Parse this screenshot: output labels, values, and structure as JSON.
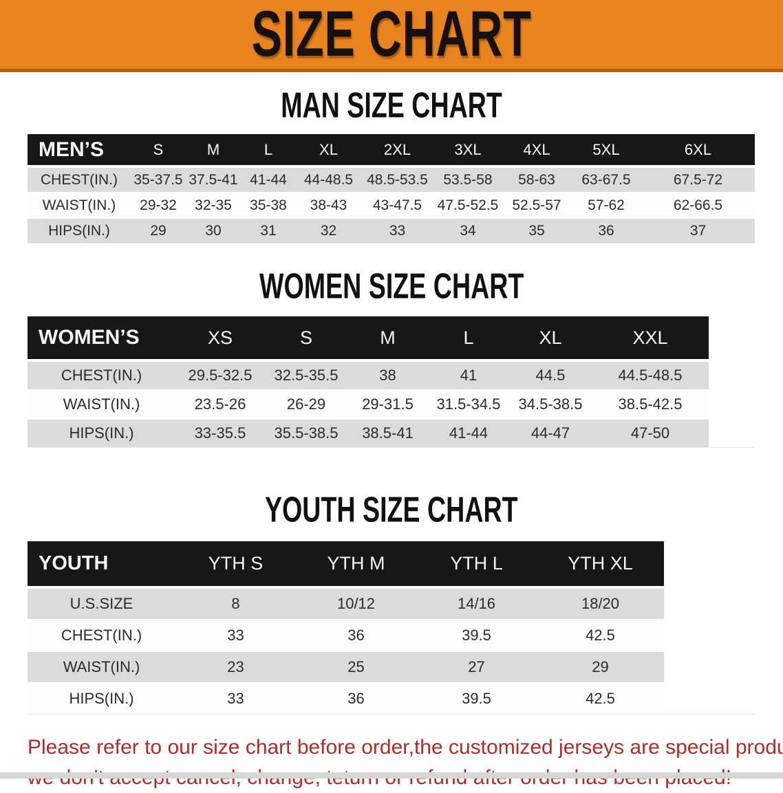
{
  "banner": {
    "title": "SIZE CHART",
    "bg_color": "#E8831E",
    "text_color": "#171010"
  },
  "men": {
    "heading": "MAN SIZE CHART",
    "header": [
      "MEN’S",
      "S",
      "M",
      "L",
      "XL",
      "2XL",
      "3XL",
      "4XL",
      "5XL",
      "6XL"
    ],
    "rows": [
      [
        "CHEST(IN.)",
        "35-37.5",
        "37.5-41",
        "41-44",
        "44-48.5",
        "48.5-53.5",
        "53.5-58",
        "58-63",
        "63-67.5",
        "67.5-72"
      ],
      [
        "WAIST(IN.)",
        "29-32",
        "32-35",
        "35-38",
        "38-43",
        "43-47.5",
        "47.5-52.5",
        "52.5-57",
        "57-62",
        "62-66.5"
      ],
      [
        "HIPS(IN.)",
        "29",
        "30",
        "31",
        "32",
        "33",
        "34",
        "35",
        "36",
        "37"
      ]
    ]
  },
  "women": {
    "heading": "WOMEN SIZE CHART",
    "header": [
      "WOMEN’S",
      "XS",
      "S",
      "M",
      "L",
      "XL",
      "XXL"
    ],
    "rows": [
      [
        "CHEST(IN.)",
        "29.5-32.5",
        "32.5-35.5",
        "38",
        "41",
        "44.5",
        "44.5-48.5"
      ],
      [
        "WAIST(IN.)",
        "23.5-26",
        "26-29",
        "29-31.5",
        "31.5-34.5",
        "34.5-38.5",
        "38.5-42.5"
      ],
      [
        "HIPS(IN.)",
        "33-35.5",
        "35.5-38.5",
        "38.5-41",
        "41-44",
        "44-47",
        "47-50"
      ]
    ]
  },
  "youth": {
    "heading": "YOUTH SIZE CHART",
    "header": [
      "YOUTH",
      "YTH S",
      "YTH M",
      "YTH L",
      "YTH XL"
    ],
    "rows": [
      [
        "U.S.SIZE",
        "8",
        "10/12",
        "14/16",
        "18/20"
      ],
      [
        "CHEST(IN.)",
        "33",
        "36",
        "39.5",
        "42.5"
      ],
      [
        "WAIST(IN.)",
        "23",
        "25",
        "27",
        "29"
      ],
      [
        "HIPS(IN.)",
        "33",
        "36",
        "39.5",
        "42.5"
      ]
    ]
  },
  "disclaimer": {
    "line1": "Please refer to our size chart before order,the customized jerseys are special products,",
    "line2": "we don't accept cancel, change, teturn or refund after order has been placed!",
    "text_color": "#AE2D28"
  },
  "colors": {
    "banner_orange": "#E8831E",
    "banner_border": "#B5650F",
    "table_header_black": "#171717",
    "row_gray": "#DBDBDB",
    "row_white": "#FDFDFD",
    "disclaimer_red": "#AE2D28"
  }
}
